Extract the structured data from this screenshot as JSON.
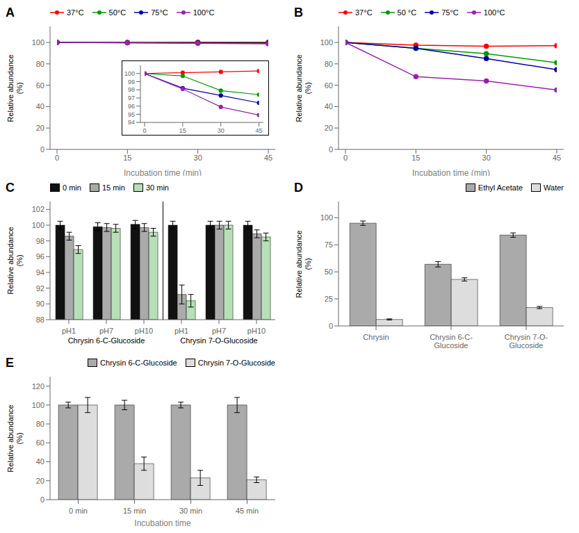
{
  "chart_data": [
    {
      "type": "line",
      "title": "A",
      "x": [
        0,
        15,
        30,
        45
      ],
      "series": [
        {
          "name": "37°C",
          "color": "#FF0000",
          "values": [
            100,
            100.1,
            100.2,
            100.3
          ]
        },
        {
          "name": "50°C",
          "color": "#009900",
          "values": [
            100,
            99.9,
            99.8,
            99.8
          ]
        },
        {
          "name": "75°C",
          "color": "#000099",
          "values": [
            100,
            99.8,
            99.5,
            99.3
          ]
        },
        {
          "name": "100°C",
          "color": "#9922AA",
          "values": [
            100,
            99.7,
            99.2,
            98.8
          ]
        }
      ],
      "xlabel": "Incubation time (min)",
      "ylabel": "Relative abundance\n(%)",
      "xlim": [
        0,
        45
      ],
      "xticks": [
        0,
        15,
        30,
        45
      ],
      "ylim": [
        0,
        115
      ],
      "yticks": [
        0,
        20,
        40,
        60,
        80,
        100
      ],
      "legend": "upper left",
      "marker": "circle",
      "grid": false
    },
    {
      "type": "line",
      "x": [
        0,
        15,
        30,
        45
      ],
      "series": [
        {
          "name": "37°C",
          "color": "#FF0000",
          "values": [
            100,
            100.1,
            100.2,
            100.3
          ]
        },
        {
          "name": "50°C",
          "color": "#009900",
          "values": [
            100,
            99.7,
            97.9,
            97.4
          ]
        },
        {
          "name": "75°C",
          "color": "#000099",
          "values": [
            100,
            98.2,
            97.3,
            96.4
          ]
        },
        {
          "name": "100°C",
          "color": "#9922AA",
          "values": [
            100,
            98.1,
            95.9,
            94.9
          ]
        }
      ],
      "xlim": [
        0,
        45
      ],
      "xticks": [
        0,
        15,
        30,
        45
      ],
      "ylim": [
        94,
        101
      ],
      "yticks": [
        94,
        95,
        96,
        97,
        98,
        99,
        100
      ],
      "marker": "circle",
      "grid": false
    },
    {
      "type": "line",
      "title": "B",
      "x": [
        0,
        15,
        30,
        45
      ],
      "series": [
        {
          "name": "37°C",
          "color": "#FF0000",
          "values": [
            100,
            97.5,
            96.5,
            97.0
          ]
        },
        {
          "name": "50 °C",
          "color": "#009900",
          "values": [
            100,
            94.5,
            89.5,
            81.0
          ]
        },
        {
          "name": "75°C",
          "color": "#000099",
          "values": [
            100,
            94.5,
            85.0,
            74.5
          ]
        },
        {
          "name": "100°C",
          "color": "#9922AA",
          "values": [
            100,
            68.0,
            64.0,
            55.5
          ]
        }
      ],
      "xlabel": "Incubation time (min)",
      "ylabel": "Relative abundance\n(%)",
      "xlim": [
        0,
        45
      ],
      "xticks": [
        0,
        15,
        30,
        45
      ],
      "ylim": [
        0,
        115
      ],
      "yticks": [
        0,
        20,
        40,
        60,
        80,
        100
      ],
      "legend": "upper left",
      "marker": "circle",
      "grid": false
    },
    {
      "type": "bar",
      "title": "C",
      "categories": [
        "pH1",
        "pH7",
        "pH10",
        "pH1",
        "pH7",
        "pH10"
      ],
      "series": [
        {
          "name": "0 min",
          "color": "#111111",
          "values": [
            100,
            99.8,
            100.1,
            100,
            100.0,
            100
          ],
          "errors": [
            0.5,
            0.5,
            0.5,
            0.5,
            0.5,
            0.5
          ]
        },
        {
          "name": "15 min",
          "color": "#aaaaaa",
          "values": [
            98.6,
            99.7,
            99.7,
            91.2,
            100.0,
            98.9
          ],
          "errors": [
            0.5,
            0.5,
            0.5,
            1.2,
            0.5,
            0.5
          ]
        },
        {
          "name": "30 min",
          "color": "#b8e0b8",
          "values": [
            96.9,
            99.6,
            99.1,
            90.4,
            100.0,
            98.5
          ],
          "errors": [
            0.5,
            0.5,
            0.5,
            0.8,
            0.5,
            0.5
          ]
        }
      ],
      "annotations": [
        "Chrysin 6-C-Glucoside",
        "Chrysin 7-O-Glucoside"
      ],
      "ylabel": "Relative abundance\n(%)",
      "ylim": [
        88,
        103
      ],
      "yticks": [
        88,
        90,
        92,
        94,
        96,
        98,
        100,
        102
      ],
      "legend": "upper left",
      "grid": false
    },
    {
      "type": "bar",
      "title": "D",
      "categories": [
        "Chrysin",
        "Chrysin 6-C-\nGlucoside",
        "Chrysin 7-O-\nGlucoside"
      ],
      "series": [
        {
          "name": "Ethyl Acetate",
          "color": "#aaaaaa",
          "values": [
            95,
            57,
            84
          ],
          "errors": [
            2.0,
            2.5,
            2.0
          ]
        },
        {
          "name": "Water",
          "color": "#dddddd",
          "values": [
            6,
            43,
            17
          ],
          "errors": [
            0.5,
            1.5,
            1.0
          ]
        }
      ],
      "ylabel": "Relative abundance\n(%)",
      "ylim": [
        0,
        115
      ],
      "yticks": [
        0,
        25,
        50,
        75,
        100
      ],
      "legend": "upper right",
      "grid": false
    },
    {
      "type": "bar",
      "title": "E",
      "categories": [
        "0 min",
        "15 min",
        "30 min",
        "45 min"
      ],
      "series": [
        {
          "name": "Chrysin 6-C-Glucoside",
          "color": "#aaaaaa",
          "values": [
            100,
            100,
            100,
            100
          ],
          "errors": [
            3,
            5,
            3,
            8
          ]
        },
        {
          "name": "Chrysin 7-O-Glucoside",
          "color": "#dddddd",
          "values": [
            100,
            38,
            23,
            21
          ],
          "errors": [
            8,
            7,
            8,
            3
          ]
        }
      ],
      "xlabel": "Incubation time",
      "ylabel": "Relative abundance\n(%)",
      "ylim": [
        0,
        130
      ],
      "yticks": [
        0,
        20,
        40,
        60,
        80,
        100,
        120
      ],
      "legend": "upper right",
      "grid": false
    }
  ]
}
